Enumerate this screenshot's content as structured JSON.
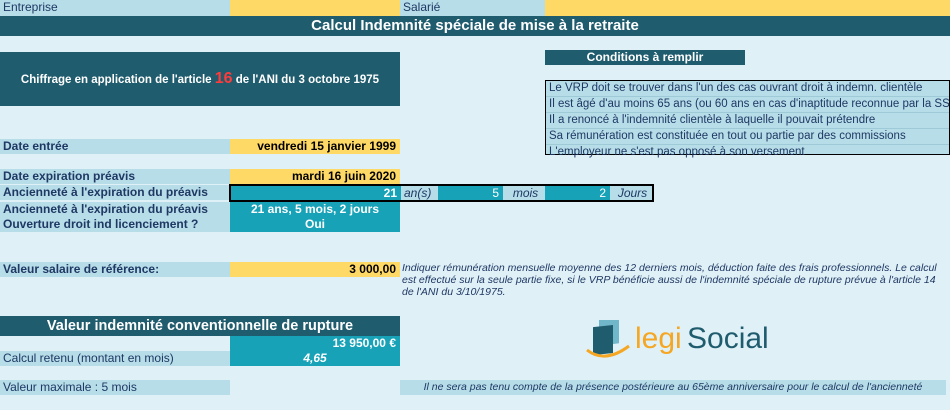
{
  "header": {
    "entreprise_label": "Entreprise",
    "salarie_label": "Salarié",
    "title": "Calcul Indemnité spéciale de mise à la retraite"
  },
  "chiffrage": {
    "prefix": "Chiffrage en application de l'article",
    "article": "16",
    "suffix": "de l'ANI du 3 octobre 1975"
  },
  "conditions": {
    "title": "Conditions à remplir",
    "items": [
      "Le VRP doit se trouver dans l'un des cas ouvrant droit à indemn. clientèle",
      "Il est âgé d'au moins 65 ans (ou 60 ans en cas d'inaptitude reconnue par la SS)",
      "Il a renoncé à l'indemnité clientèle à laquelle il pouvait prétendre",
      "Sa rémunération est constituée en tout ou partie par des commissions",
      "L'employeur ne s'est pas opposé à son versement"
    ]
  },
  "form": {
    "date_entree_label": "Date entrée",
    "date_entree_value": "vendredi 15 janvier 1999",
    "date_expiration_label": "Date expiration préavis",
    "date_expiration_value": "mardi 16 juin 2020",
    "anciennete_label": "Ancienneté à l'expiration du préavis",
    "anciennete_years": "21",
    "anciennete_years_unit": "an(s)",
    "anciennete_months": "5",
    "anciennete_months_unit": "mois",
    "anciennete_days": "2",
    "anciennete_days_unit": "Jours",
    "anciennete2_label": "Ancienneté à l'expiration du préavis",
    "anciennete2_value": "21 ans, 5 mois, 2 jours",
    "ouverture_label": "Ouverture droit ind licenciement ?",
    "ouverture_value": "Oui",
    "salaire_label": "Valeur salaire de référence:",
    "salaire_value": "3 000,00",
    "salaire_note": "Indiquer rémunération mensuelle moyenne des 12 derniers mois, déduction faite des frais professionnels. Le calcul est effectué sur la seule partie fixe, si le VRP bénéficie aussi de l'indemnité spéciale de rupture prévue à l'article 14 de l'ANI du 3/10/1975."
  },
  "result": {
    "title": "Valeur indemnité conventionnelle de rupture",
    "amount": "13 950,00 €",
    "calcul_label": "Calcul retenu (montant en mois)",
    "calcul_value": "4,65",
    "max_label": "Valeur maximale : 5 mois",
    "bottom_note": "Il ne sera pas tenu compte de la présence postérieure au 65ème anniversaire pour le calcul de l'ancienneté"
  },
  "brand": {
    "logo_part1": "legi",
    "logo_part2": "Social",
    "color_dark": "#1f5c6e",
    "color_teal": "#17a2b8",
    "color_yellow": "#ffd966"
  }
}
